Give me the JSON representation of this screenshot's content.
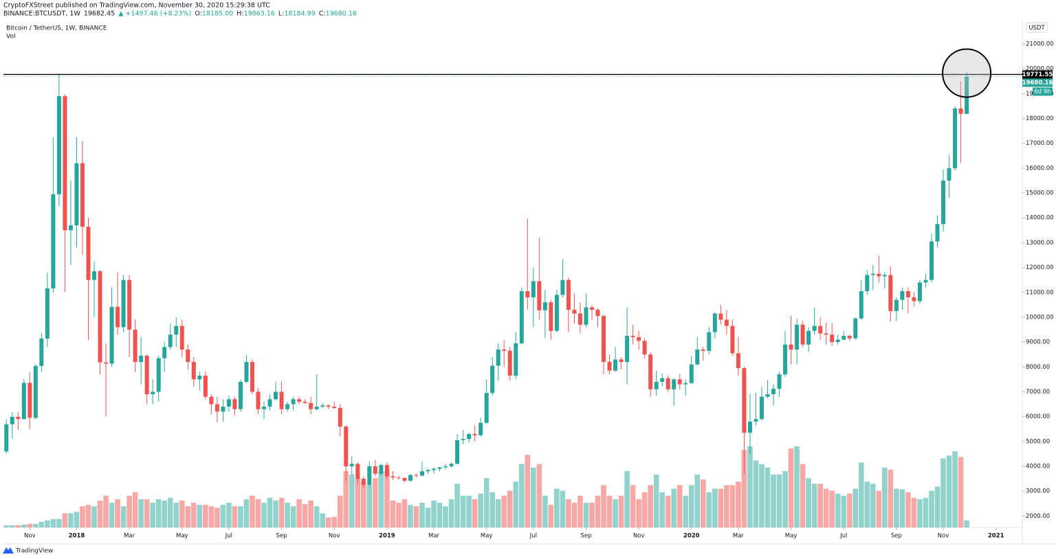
{
  "chart_data": {
    "type": "candlestick",
    "header": {
      "published": "CryptoFXStreet published on TradingView.com, November 30, 2020 15:29:38 UTC",
      "symbol": "BINANCE:BTCUSDT, 1W",
      "last": "19682.45",
      "change": "▲ +1497.46 (+8.23%)",
      "ohlc": [
        {
          "k": "O:",
          "v": "18185.00"
        },
        {
          "k": "H:",
          "v": "19863.16"
        },
        {
          "k": "L:",
          "v": "18184.99"
        },
        {
          "k": "C:",
          "v": "19680.16"
        }
      ]
    },
    "title": "Bitcoin / TetherUS, 1W, BINANCE",
    "volume_label": "Vol",
    "currency": "USDT",
    "brand": "TradingView",
    "up_color": "#26a69a",
    "down_color": "#ef5350",
    "hline": {
      "value": 19771.55,
      "label": "19771.55"
    },
    "last_price": {
      "value": 19680.16,
      "label": "19680.16"
    },
    "countdown": "6d 9h",
    "xlim": [
      -0.5,
      173.5
    ],
    "xticks": [
      {
        "value": 4,
        "label": "Nov"
      },
      {
        "value": 12,
        "label": "2018"
      },
      {
        "value": 21,
        "label": "Mar"
      },
      {
        "value": 30,
        "label": "May"
      },
      {
        "value": 38,
        "label": "Jul"
      },
      {
        "value": 47,
        "label": "Sep"
      },
      {
        "value": 56,
        "label": "Nov"
      },
      {
        "value": 65,
        "label": "2019"
      },
      {
        "value": 73,
        "label": "Mar"
      },
      {
        "value": 82,
        "label": "May"
      },
      {
        "value": 90,
        "label": "Jul"
      },
      {
        "value": 99,
        "label": "Sep"
      },
      {
        "value": 108,
        "label": "Nov"
      },
      {
        "value": 117,
        "label": "2020"
      },
      {
        "value": 125,
        "label": "Mar"
      },
      {
        "value": 134,
        "label": "May"
      },
      {
        "value": 143,
        "label": "Jul"
      },
      {
        "value": 152,
        "label": "Sep"
      },
      {
        "value": 160,
        "label": "Nov"
      },
      {
        "value": 169,
        "label": "2021"
      }
    ],
    "ylim": [
      1540,
      21940
    ],
    "yticks": [
      {
        "value": 2000,
        "label": "2000.00"
      },
      {
        "value": 3000,
        "label": "3000.00"
      },
      {
        "value": 4000,
        "label": "4000.00"
      },
      {
        "value": 5000,
        "label": "5000.00"
      },
      {
        "value": 6000,
        "label": "6000.00"
      },
      {
        "value": 7000,
        "label": "7000.00"
      },
      {
        "value": 8000,
        "label": "8000.00"
      },
      {
        "value": 9000,
        "label": "9000.00"
      },
      {
        "value": 10000,
        "label": "10000.00"
      },
      {
        "value": 11000,
        "label": "11000.00"
      },
      {
        "value": 12000,
        "label": "12000.00"
      },
      {
        "value": 13000,
        "label": "13000.00"
      },
      {
        "value": 14000,
        "label": "14000.00"
      },
      {
        "value": 15000,
        "label": "15000.00"
      },
      {
        "value": 16000,
        "label": "16000.00"
      },
      {
        "value": 17000,
        "label": "17000.00"
      },
      {
        "value": 18000,
        "label": "18000.00"
      },
      {
        "value": 19000,
        "label": "19000.00"
      },
      {
        "value": 20000,
        "label": "20000.00"
      },
      {
        "value": 21000,
        "label": "21000.00"
      }
    ],
    "ohlc": [
      [
        4600,
        5900,
        4510,
        5690
      ],
      [
        5690,
        6170,
        5110,
        5990
      ],
      [
        5990,
        6180,
        5470,
        5900
      ],
      [
        5900,
        7520,
        5880,
        7360
      ],
      [
        7360,
        7780,
        5500,
        5950
      ],
      [
        5950,
        8100,
        5900,
        8040
      ],
      [
        8040,
        9350,
        7800,
        9140
      ],
      [
        9140,
        11800,
        8800,
        11160
      ],
      [
        11160,
        17240,
        11000,
        14950
      ],
      [
        14950,
        19800,
        14480,
        18900
      ],
      [
        18900,
        18960,
        11020,
        13500
      ],
      [
        13500,
        15500,
        12100,
        13700
      ],
      [
        13700,
        17250,
        12800,
        16200
      ],
      [
        16200,
        17100,
        12500,
        13640
      ],
      [
        13640,
        14000,
        9090,
        11500
      ],
      [
        11500,
        12240,
        10000,
        11850
      ],
      [
        11850,
        11900,
        7700,
        8180
      ],
      [
        8180,
        8950,
        6000,
        8130
      ],
      [
        8130,
        11200,
        8000,
        10420
      ],
      [
        10420,
        11800,
        9300,
        9600
      ],
      [
        9600,
        11700,
        9400,
        11500
      ],
      [
        11500,
        11700,
        8400,
        9500
      ],
      [
        9500,
        9900,
        7800,
        8200
      ],
      [
        8200,
        9200,
        7300,
        8450
      ],
      [
        8450,
        8500,
        6500,
        6900
      ],
      [
        6900,
        7500,
        6500,
        7000
      ],
      [
        7000,
        8450,
        6600,
        8350
      ],
      [
        8350,
        9000,
        7800,
        8800
      ],
      [
        8800,
        9750,
        8700,
        9300
      ],
      [
        9300,
        10000,
        8800,
        9650
      ],
      [
        9650,
        9900,
        8400,
        8700
      ],
      [
        8700,
        8900,
        7900,
        8200
      ],
      [
        8200,
        8400,
        7200,
        7500
      ],
      [
        7500,
        7800,
        7050,
        7650
      ],
      [
        7650,
        7800,
        6700,
        6800
      ],
      [
        6800,
        6900,
        6100,
        6500
      ],
      [
        6500,
        6800,
        5770,
        6200
      ],
      [
        6200,
        6700,
        5800,
        6400
      ],
      [
        6400,
        6850,
        6200,
        6700
      ],
      [
        6700,
        6800,
        6050,
        6300
      ],
      [
        6300,
        7500,
        6200,
        7400
      ],
      [
        7400,
        8480,
        7350,
        8200
      ],
      [
        8200,
        8300,
        6900,
        7000
      ],
      [
        7000,
        7150,
        6100,
        6300
      ],
      [
        6300,
        6600,
        5900,
        6400
      ],
      [
        6400,
        6900,
        6250,
        6700
      ],
      [
        6700,
        7400,
        6650,
        7000
      ],
      [
        7000,
        7400,
        6100,
        6300
      ],
      [
        6300,
        6600,
        6200,
        6500
      ],
      [
        6500,
        6800,
        6250,
        6700
      ],
      [
        6700,
        6800,
        6500,
        6600
      ],
      [
        6600,
        6700,
        6500,
        6550
      ],
      [
        6550,
        6800,
        6100,
        6300
      ],
      [
        6300,
        7700,
        6250,
        6400
      ],
      [
        6400,
        6550,
        6350,
        6450
      ],
      [
        6450,
        6500,
        6300,
        6400
      ],
      [
        6400,
        6600,
        6300,
        6350
      ],
      [
        6350,
        6500,
        5200,
        5600
      ],
      [
        5600,
        5650,
        3420,
        4000
      ],
      [
        4000,
        4400,
        3650,
        4100
      ],
      [
        4100,
        4150,
        3300,
        3500
      ],
      [
        3500,
        3600,
        3150,
        3250
      ],
      [
        3250,
        4200,
        3200,
        4000
      ],
      [
        4000,
        4250,
        3600,
        3700
      ],
      [
        3700,
        4100,
        3650,
        4050
      ],
      [
        4050,
        4150,
        3500,
        3600
      ],
      [
        3600,
        3800,
        3450,
        3550
      ],
      [
        3550,
        3620,
        3450,
        3530
      ],
      [
        3530,
        3560,
        3350,
        3420
      ],
      [
        3420,
        3700,
        3380,
        3650
      ],
      [
        3650,
        3700,
        3550,
        3620
      ],
      [
        3620,
        4200,
        3600,
        3800
      ],
      [
        3800,
        3900,
        3700,
        3850
      ],
      [
        3850,
        3950,
        3700,
        3900
      ],
      [
        3900,
        3980,
        3800,
        3960
      ],
      [
        3960,
        4100,
        3880,
        4000
      ],
      [
        4000,
        4150,
        3950,
        4100
      ],
      [
        4100,
        5300,
        4080,
        5050
      ],
      [
        5050,
        5450,
        4900,
        5100
      ],
      [
        5100,
        5350,
        4950,
        5300
      ],
      [
        5300,
        5650,
        5000,
        5250
      ],
      [
        5250,
        5950,
        5200,
        5750
      ],
      [
        5750,
        7500,
        5700,
        6950
      ],
      [
        6950,
        8400,
        6850,
        8050
      ],
      [
        8050,
        8950,
        7450,
        8700
      ],
      [
        8700,
        9080,
        8000,
        8650
      ],
      [
        8650,
        8800,
        7450,
        7650
      ],
      [
        7650,
        9400,
        7500,
        8950
      ],
      [
        8950,
        11200,
        8900,
        11050
      ],
      [
        11050,
        13970,
        10300,
        10800
      ],
      [
        10800,
        12000,
        9600,
        11450
      ],
      [
        11450,
        13200,
        9900,
        10280
      ],
      [
        10280,
        11100,
        9170,
        10600
      ],
      [
        10600,
        10700,
        9100,
        9450
      ],
      [
        9450,
        11100,
        9400,
        10900
      ],
      [
        10900,
        12320,
        10800,
        11500
      ],
      [
        11500,
        11600,
        9400,
        10300
      ],
      [
        10300,
        10950,
        9750,
        10150
      ],
      [
        10150,
        10600,
        9350,
        9700
      ],
      [
        9700,
        10950,
        9600,
        10400
      ],
      [
        10400,
        10500,
        9900,
        10300
      ],
      [
        10300,
        10350,
        9600,
        10050
      ],
      [
        10050,
        10100,
        7700,
        8200
      ],
      [
        8200,
        8500,
        7700,
        7850
      ],
      [
        7850,
        8800,
        7800,
        8300
      ],
      [
        8300,
        8400,
        7900,
        8200
      ],
      [
        8200,
        10400,
        7300,
        9250
      ],
      [
        9250,
        9700,
        8900,
        9200
      ],
      [
        9200,
        9450,
        8700,
        9050
      ],
      [
        9050,
        9150,
        8350,
        8500
      ],
      [
        8500,
        8600,
        6800,
        7100
      ],
      [
        7100,
        7850,
        6850,
        7400
      ],
      [
        7400,
        7750,
        7200,
        7550
      ],
      [
        7550,
        7650,
        7000,
        7100
      ],
      [
        7100,
        7550,
        6450,
        7500
      ],
      [
        7500,
        7700,
        7100,
        7300
      ],
      [
        7300,
        7500,
        6850,
        7350
      ],
      [
        7350,
        8450,
        7300,
        8100
      ],
      [
        8100,
        9200,
        8050,
        8700
      ],
      [
        8700,
        8800,
        8250,
        8650
      ],
      [
        8650,
        9600,
        8500,
        9400
      ],
      [
        9400,
        10200,
        9150,
        10150
      ],
      [
        10150,
        10500,
        9700,
        9900
      ],
      [
        9900,
        10300,
        9300,
        9650
      ],
      [
        9650,
        9900,
        8450,
        8550
      ],
      [
        8550,
        9200,
        7650,
        7950
      ],
      [
        7950,
        8000,
        3700,
        5350
      ],
      [
        5350,
        6900,
        4500,
        5800
      ],
      [
        5800,
        6950,
        5650,
        5900
      ],
      [
        5900,
        7200,
        5850,
        6800
      ],
      [
        6800,
        7450,
        6750,
        6900
      ],
      [
        6900,
        7300,
        6450,
        7120
      ],
      [
        7120,
        7800,
        6800,
        7700
      ],
      [
        7700,
        9450,
        7600,
        8900
      ],
      [
        8900,
        10050,
        8100,
        8700
      ],
      [
        8700,
        9950,
        8100,
        9700
      ],
      [
        9700,
        9850,
        8800,
        8900
      ],
      [
        8900,
        9600,
        8600,
        9450
      ],
      [
        9450,
        10400,
        9300,
        9650
      ],
      [
        9650,
        10000,
        9100,
        9350
      ],
      [
        9350,
        9800,
        8900,
        9300
      ],
      [
        9300,
        9770,
        8850,
        9000
      ],
      [
        9000,
        9300,
        8900,
        9100
      ],
      [
        9100,
        9450,
        9050,
        9250
      ],
      [
        9250,
        9300,
        9050,
        9150
      ],
      [
        9150,
        10000,
        9100,
        9950
      ],
      [
        9950,
        11500,
        9900,
        11050
      ],
      [
        11050,
        11900,
        10900,
        11700
      ],
      [
        11700,
        12100,
        11100,
        11750
      ],
      [
        11750,
        12490,
        11400,
        11650
      ],
      [
        11650,
        11800,
        11150,
        11700
      ],
      [
        11700,
        12050,
        9830,
        10250
      ],
      [
        10250,
        10800,
        9850,
        10700
      ],
      [
        10700,
        11200,
        10300,
        11050
      ],
      [
        11050,
        11200,
        10150,
        10800
      ],
      [
        10800,
        11000,
        10450,
        10650
      ],
      [
        10650,
        11500,
        10550,
        11400
      ],
      [
        11400,
        11750,
        11200,
        11500
      ],
      [
        11500,
        13350,
        11400,
        13050
      ],
      [
        13050,
        14100,
        12800,
        13750
      ],
      [
        13750,
        15950,
        13450,
        15500
      ],
      [
        15500,
        16500,
        14800,
        16000
      ],
      [
        16000,
        18500,
        15900,
        18400
      ],
      [
        18400,
        19500,
        16220,
        18185
      ],
      [
        18185,
        19863.16,
        18184.99,
        19680.16
      ]
    ],
    "volume": [
      12000,
      12000,
      12000,
      16000,
      20000,
      20000,
      32000,
      40000,
      48000,
      48000,
      80000,
      80000,
      88000,
      120000,
      128000,
      120000,
      152000,
      180000,
      140000,
      160000,
      120000,
      180000,
      200000,
      160000,
      160000,
      140000,
      160000,
      152000,
      168000,
      140000,
      152000,
      120000,
      140000,
      128000,
      128000,
      120000,
      112000,
      128000,
      140000,
      120000,
      120000,
      160000,
      180000,
      160000,
      140000,
      168000,
      152000,
      168000,
      140000,
      120000,
      160000,
      132000,
      152000,
      120000,
      80000,
      56000,
      60000,
      180000,
      320000,
      300000,
      280000,
      260000,
      240000,
      280000,
      320000,
      320000,
      152000,
      140000,
      160000,
      128000,
      120000,
      140000,
      112000,
      152000,
      140000,
      120000,
      160000,
      248000,
      180000,
      180000,
      160000,
      192000,
      280000,
      200000,
      160000,
      180000,
      208000,
      260000,
      360000,
      412000,
      340000,
      360000,
      180000,
      128000,
      220000,
      208000,
      160000,
      140000,
      180000,
      140000,
      140000,
      180000,
      240000,
      180000,
      160000,
      180000,
      320000,
      240000,
      160000,
      200000,
      240000,
      300000,
      200000,
      180000,
      220000,
      240000,
      180000,
      240000,
      300000,
      272000,
      200000,
      220000,
      220000,
      240000,
      240000,
      260000,
      440000,
      460000,
      380000,
      360000,
      340000,
      300000,
      300000,
      320000,
      448000,
      460000,
      360000,
      280000,
      248000,
      248000,
      220000,
      208000,
      192000,
      180000,
      192000,
      220000,
      368000,
      260000,
      248000,
      208000,
      340000,
      328000,
      220000,
      216000,
      200000,
      168000,
      160000,
      168000,
      208000,
      232000,
      392000,
      408000,
      432000,
      400000,
      40000
    ]
  }
}
